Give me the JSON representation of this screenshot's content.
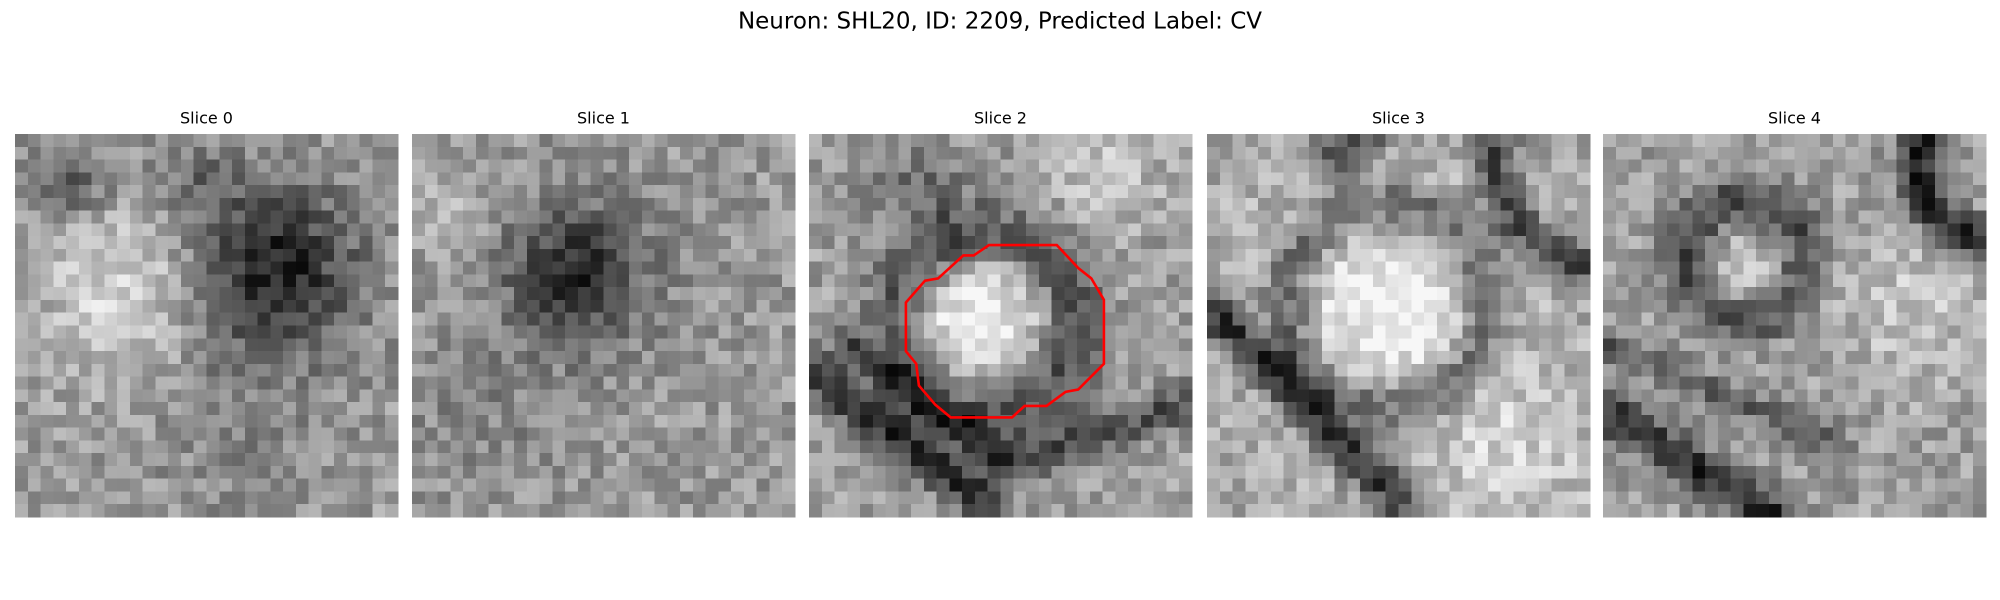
{
  "title": "Neuron: SHL20, ID: 2209, Predicted Label: CV",
  "panels": [
    {
      "title": "Slice 0"
    },
    {
      "title": "Slice 1"
    },
    {
      "title": "Slice 2"
    },
    {
      "title": "Slice 3"
    },
    {
      "title": "Slice 4"
    }
  ]
}
